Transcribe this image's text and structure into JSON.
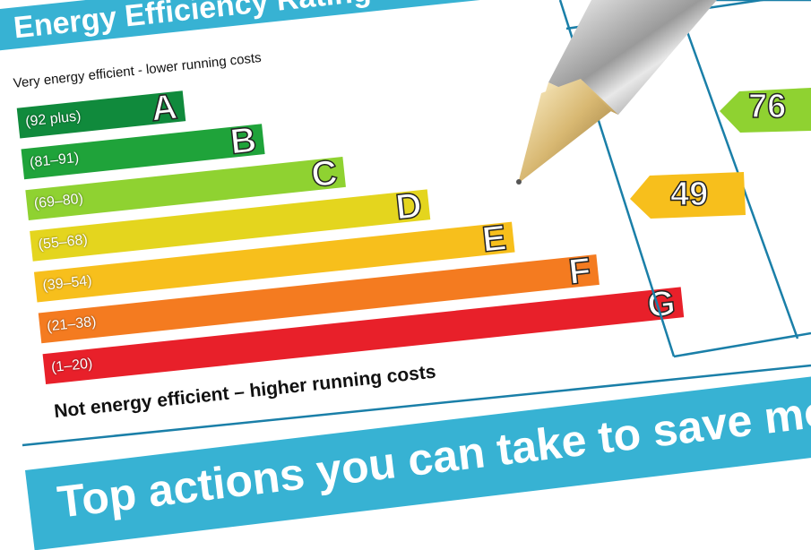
{
  "header": {
    "title": "Energy Efficiency Rating"
  },
  "top_note": "Very energy efficient - lower running costs",
  "bottom_note": "Not energy efficient – higher running costs",
  "bands": [
    {
      "range": "(92 plus)",
      "letter": "A",
      "color": "#108a3c"
    },
    {
      "range": "(81–91)",
      "letter": "B",
      "color": "#1fa33a"
    },
    {
      "range": "(69–80)",
      "letter": "C",
      "color": "#8fd231"
    },
    {
      "range": "(55–68)",
      "letter": "D",
      "color": "#e4d51e"
    },
    {
      "range": "(39–54)",
      "letter": "E",
      "color": "#f7bf1c"
    },
    {
      "range": "(21–38)",
      "letter": "F",
      "color": "#f47b20"
    },
    {
      "range": "(1–20)",
      "letter": "G",
      "color": "#e8202a"
    }
  ],
  "ratings": {
    "current": {
      "value": "49",
      "band": "E",
      "color": "#f7bf1c"
    },
    "potential": {
      "value": "76",
      "band": "C",
      "color": "#8fd231"
    }
  },
  "footer_banner": "Top actions you can take to save money"
}
